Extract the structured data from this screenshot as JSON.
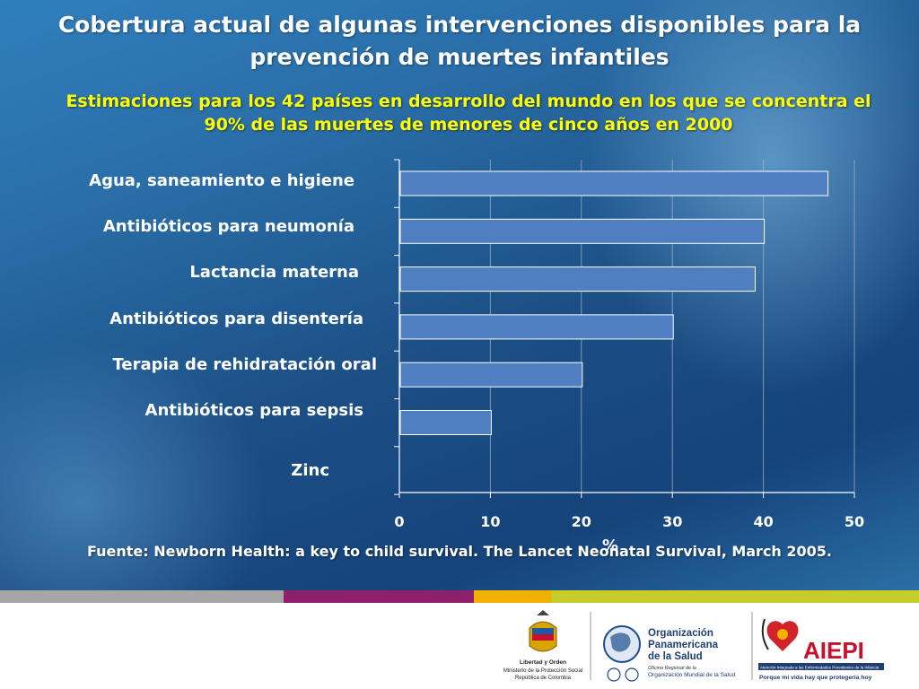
{
  "title": "Cobertura actual de algunas intervenciones disponibles para la prevención de muertes infantiles",
  "subtitle": "Estimaciones para los 42 países en desarrollo del mundo en los que se concentra el 90% de las muertes de menores de cinco años en 2000",
  "source": "Fuente: Newborn Health: a key to child survival. The Lancet Neonatal Survival, March 2005.",
  "colors": {
    "bar_fill": "#4f7fc0",
    "bar_stroke": "#ffffff",
    "strip": [
      "#a6a6a6",
      "#8e1f6d",
      "#f2b100",
      "#c5cc2b"
    ]
  },
  "chart_data": {
    "type": "bar",
    "orientation": "horizontal",
    "categories": [
      "Agua, saneamiento e higiene",
      "Antibióticos para neumonía",
      "Lactancia materna",
      "Antibióticos para disentería",
      "Terapia de rehidratación oral",
      "Antibióticos para sepsis",
      "Zinc"
    ],
    "values": [
      47,
      40,
      39,
      30,
      20,
      10,
      0
    ],
    "xlabel": "%",
    "xlim": [
      0,
      50
    ],
    "xticks": [
      "0",
      "10",
      "20",
      "30",
      "40",
      "50"
    ],
    "grid": true,
    "legend": "none"
  },
  "logos": {
    "colombia": {
      "text1": "Libertad y Orden",
      "text2": "Ministerio de la Protección Social",
      "text3": "República de Colombia"
    },
    "ops": {
      "name1": "Organización",
      "name2": "Panamericana",
      "name3": "de la Salud",
      "sub1": "Oficina Regional de la",
      "sub2": "Organización Mundial de la Salud"
    },
    "aiepi": {
      "name": "AIEPI",
      "band": "Atención Integrada a las Enfermedades Prevalentes de la Infancia",
      "tagline": "Porque mi vida hay que protegería hoy"
    }
  }
}
